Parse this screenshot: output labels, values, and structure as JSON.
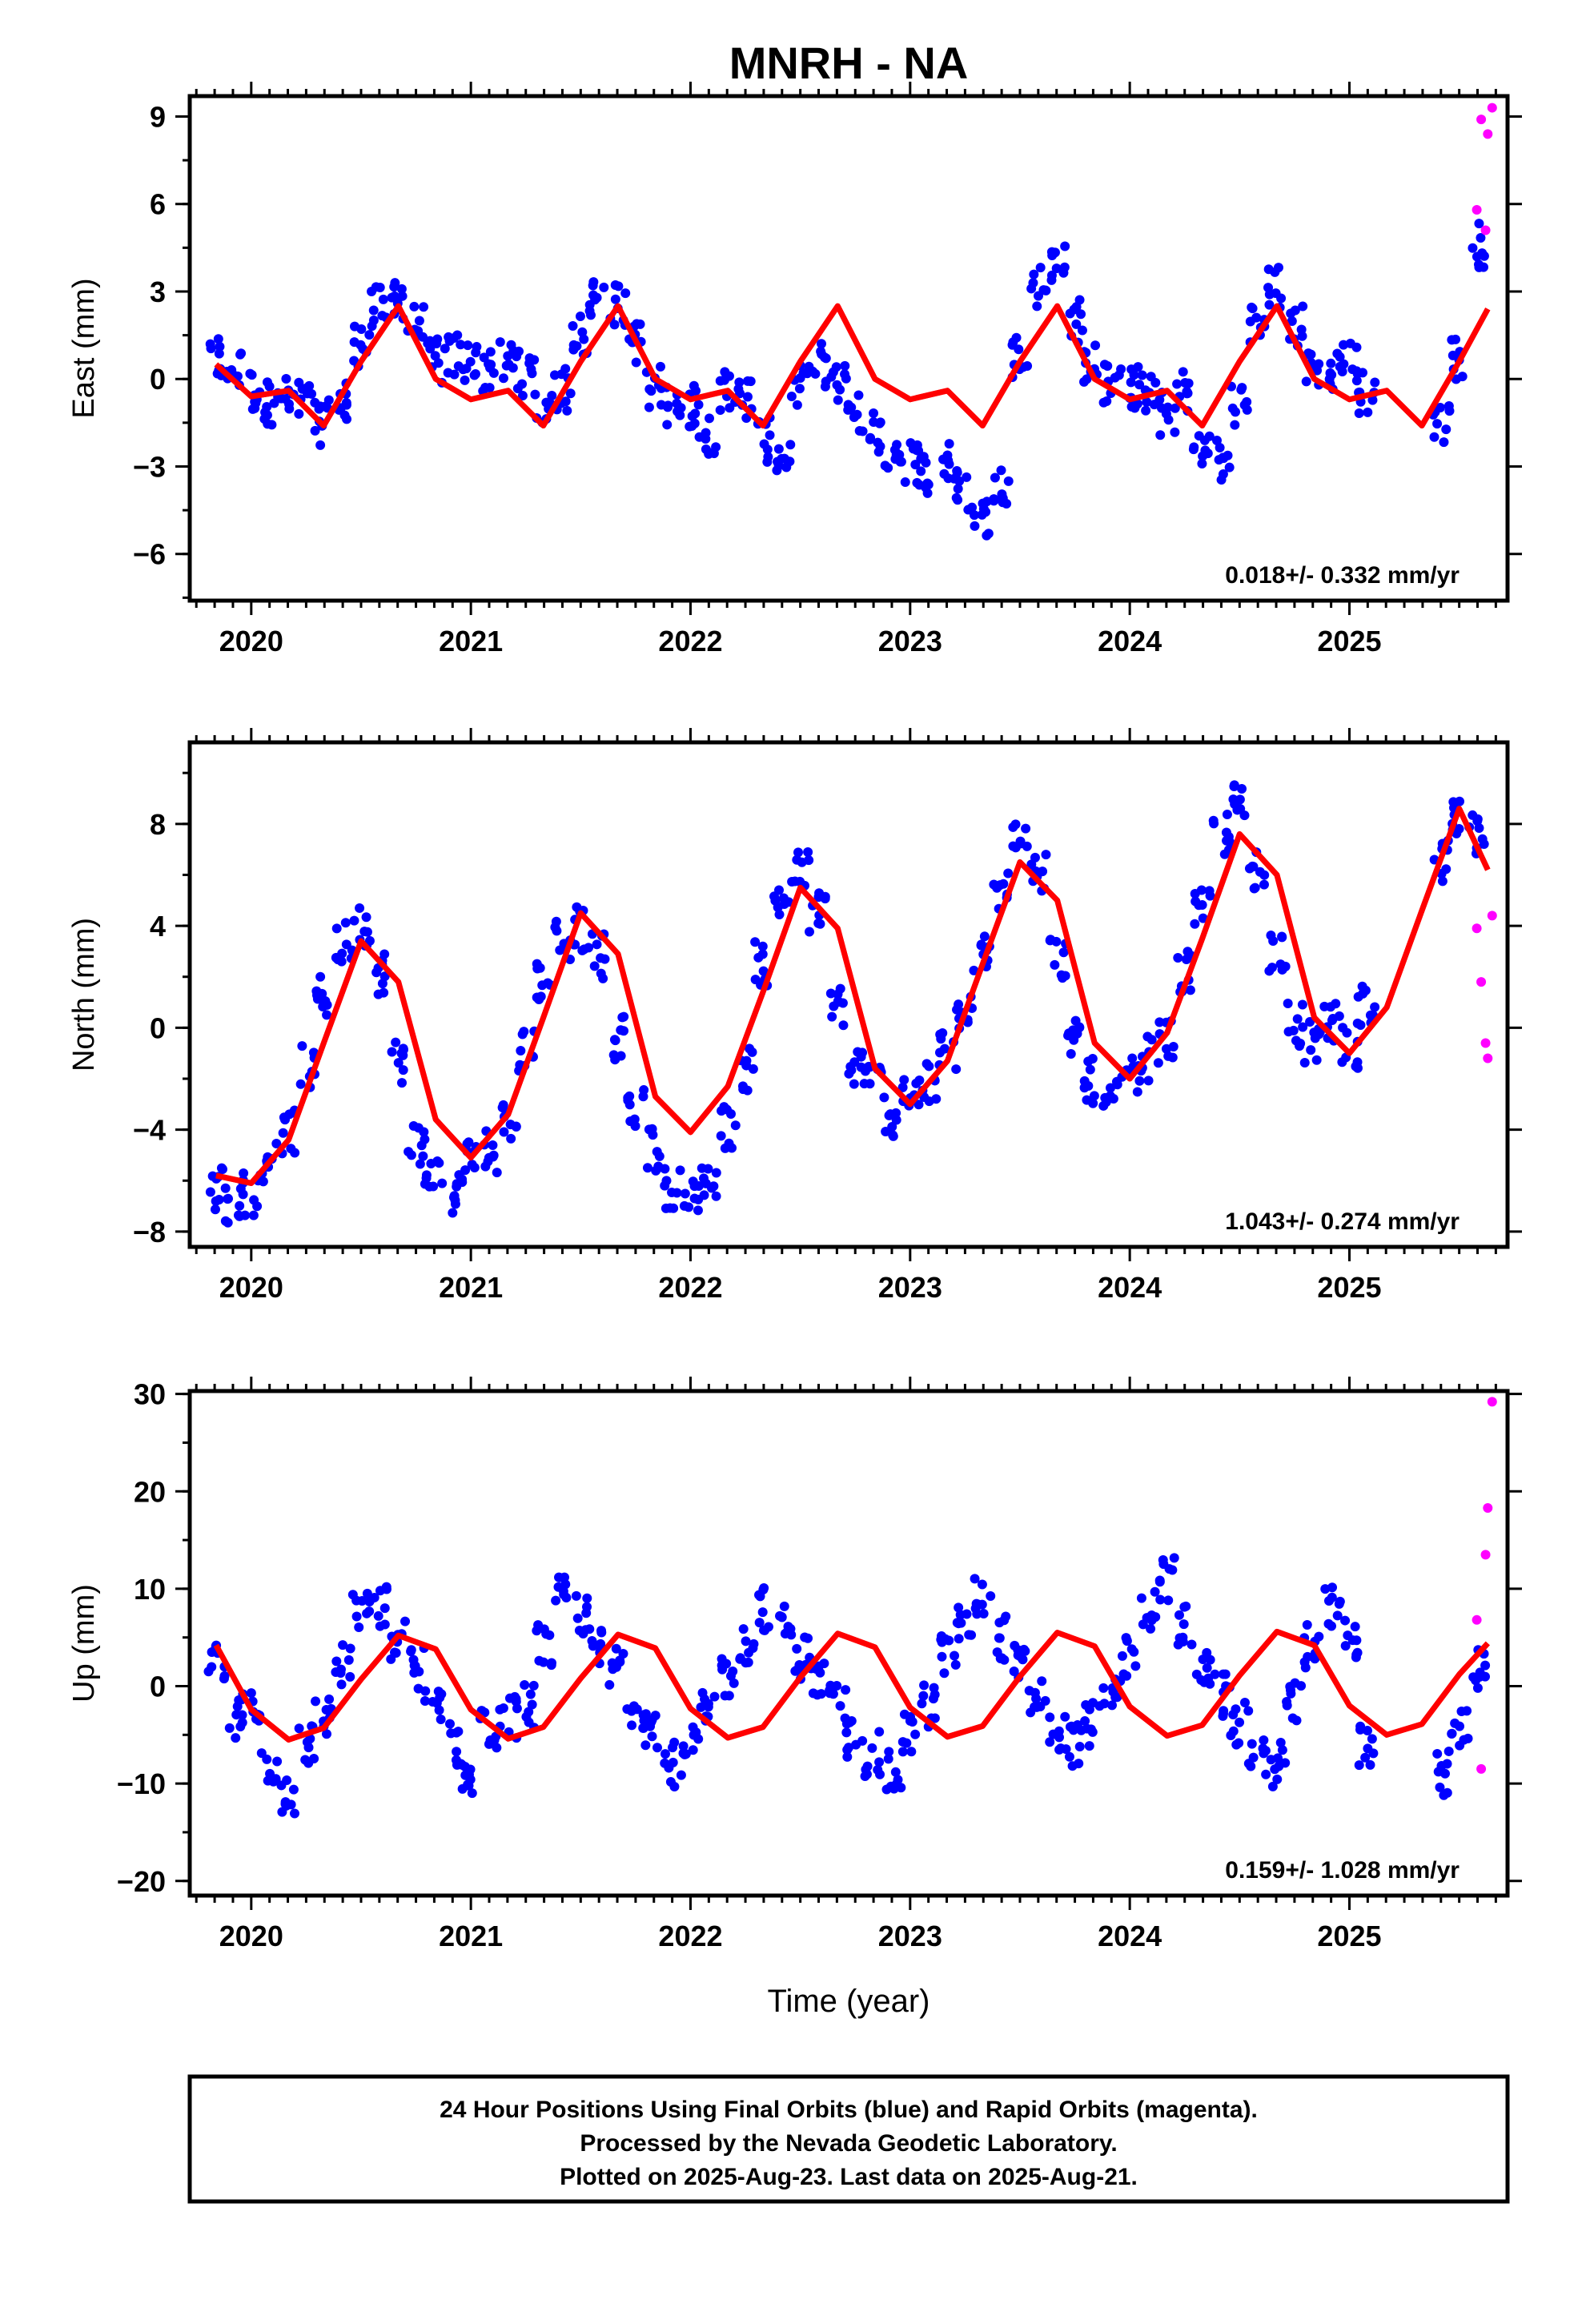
{
  "title": "MNRH - NA",
  "xlabel": "Time (year)",
  "colors": {
    "final": "#0000ff",
    "rapid": "#ff00ff",
    "fit": "#ff0000"
  },
  "footer": {
    "line1": "24 Hour Positions Using Final Orbits (blue) and Rapid Orbits (magenta).",
    "line2": "Processed by the Nevada Geodetic Laboratory.",
    "line3": "Plotted on 2025-Aug-23. Last data on 2025-Aug-21."
  },
  "chart_data": [
    {
      "type": "scatter",
      "panel": "east",
      "ylabel": "East (mm)",
      "xlim": [
        2019.72,
        2025.72
      ],
      "ylim": [
        -7.6,
        9.7
      ],
      "xticks": [
        2020,
        2021,
        2022,
        2023,
        2024,
        2025
      ],
      "yticks": [
        -6,
        -3,
        0,
        3,
        6,
        9
      ],
      "yticklabels": [
        "−6",
        "−3",
        "0",
        "3",
        "6",
        "9"
      ],
      "rate_label": "0.018+/- 0.332 mm/yr",
      "series": [
        {
          "name": "Final Orbits (blue)",
          "color": "#0000ff",
          "x": [
            2019.84,
            2019.92,
            2020.0,
            2020.08,
            2020.16,
            2020.25,
            2020.33,
            2020.42,
            2020.5,
            2020.58,
            2020.67,
            2020.75,
            2020.83,
            2020.92,
            2021.0,
            2021.08,
            2021.17,
            2021.25,
            2021.33,
            2021.42,
            2021.5,
            2021.58,
            2021.67,
            2021.75,
            2021.83,
            2021.92,
            2022.0,
            2022.08,
            2022.17,
            2022.25,
            2022.33,
            2022.42,
            2022.5,
            2022.58,
            2022.67,
            2022.75,
            2022.83,
            2022.92,
            2023.0,
            2023.08,
            2023.17,
            2023.25,
            2023.33,
            2023.42,
            2023.5,
            2023.58,
            2023.67,
            2023.75,
            2023.83,
            2023.92,
            2024.0,
            2024.08,
            2024.17,
            2024.25,
            2024.33,
            2024.42,
            2024.5,
            2024.58,
            2024.67,
            2024.75,
            2024.83,
            2024.92,
            2025.0,
            2025.08,
            2025.42,
            2025.5,
            2025.58
          ],
          "y": [
            0.6,
            0.3,
            -0.4,
            -0.8,
            -0.7,
            -0.8,
            -1.5,
            -0.8,
            1.2,
            2.4,
            2.8,
            1.8,
            0.6,
            0.8,
            0.6,
            0.3,
            0.5,
            0.2,
            -0.8,
            -0.4,
            1.5,
            2.9,
            2.5,
            1.3,
            -0.3,
            -0.8,
            -0.9,
            -1.8,
            -0.5,
            -0.6,
            -2.1,
            -2.6,
            -0.3,
            0.5,
            -0.2,
            -1.1,
            -1.9,
            -2.4,
            -2.8,
            -3.2,
            -2.9,
            -3.8,
            -4.8,
            -3.5,
            0.8,
            3.2,
            4.1,
            2.0,
            0.5,
            -0.1,
            -0.3,
            -0.6,
            -1.2,
            -0.4,
            -2.5,
            -2.8,
            -0.8,
            1.9,
            3.1,
            1.8,
            0.5,
            0.3,
            0.6,
            -0.5,
            -1.4,
            0.7,
            4.6
          ]
        },
        {
          "name": "Rapid Orbits (magenta)",
          "color": "#ff00ff",
          "x": [
            2025.58,
            2025.6,
            2025.62,
            2025.63,
            2025.65
          ],
          "y": [
            5.8,
            8.9,
            5.1,
            8.4,
            9.3
          ]
        },
        {
          "name": "fit",
          "type": "line",
          "color": "#ff0000",
          "x": [
            2019.84,
            2020.0,
            2020.17,
            2020.33,
            2020.5,
            2020.67,
            2020.84,
            2021.0,
            2021.17,
            2021.33,
            2021.5,
            2021.67,
            2021.84,
            2022.0,
            2022.17,
            2022.33,
            2022.5,
            2022.67,
            2022.84,
            2023.0,
            2023.17,
            2023.33,
            2023.5,
            2023.67,
            2023.84,
            2024.0,
            2024.17,
            2024.33,
            2024.5,
            2024.67,
            2024.84,
            2025.0,
            2025.17,
            2025.33,
            2025.5,
            2025.63
          ],
          "y": [
            0.5,
            -0.6,
            -0.4,
            -1.6,
            0.6,
            2.5,
            0.0,
            -0.7,
            -0.4,
            -1.6,
            0.6,
            2.5,
            0.0,
            -0.7,
            -0.4,
            -1.6,
            0.6,
            2.5,
            0.0,
            -0.7,
            -0.4,
            -1.6,
            0.6,
            2.5,
            0.0,
            -0.7,
            -0.4,
            -1.6,
            0.6,
            2.5,
            0.0,
            -0.7,
            -0.4,
            -1.6,
            0.6,
            2.4
          ]
        }
      ]
    },
    {
      "type": "scatter",
      "panel": "north",
      "ylabel": "North (mm)",
      "xlim": [
        2019.72,
        2025.72
      ],
      "ylim": [
        -8.6,
        11.2
      ],
      "xticks": [
        2020,
        2021,
        2022,
        2023,
        2024,
        2025
      ],
      "yticks": [
        -8,
        -4,
        0,
        4,
        8
      ],
      "yticklabels": [
        "−8",
        "−4",
        "0",
        "4",
        "8"
      ],
      "rate_label": "1.043+/- 0.274 mm/yr",
      "series": [
        {
          "name": "Final Orbits (blue)",
          "color": "#0000ff",
          "x": [
            2019.84,
            2019.92,
            2020.0,
            2020.08,
            2020.17,
            2020.25,
            2020.33,
            2020.42,
            2020.5,
            2020.58,
            2020.67,
            2020.75,
            2020.83,
            2020.92,
            2021.0,
            2021.08,
            2021.17,
            2021.25,
            2021.33,
            2021.42,
            2021.5,
            2021.58,
            2021.67,
            2021.75,
            2021.83,
            2021.92,
            2022.0,
            2022.08,
            2022.17,
            2022.25,
            2022.33,
            2022.42,
            2022.5,
            2022.58,
            2022.67,
            2022.75,
            2022.83,
            2022.92,
            2023.0,
            2023.08,
            2023.17,
            2023.25,
            2023.33,
            2023.42,
            2023.5,
            2023.58,
            2023.67,
            2023.75,
            2023.83,
            2023.92,
            2024.0,
            2024.08,
            2024.17,
            2024.25,
            2024.33,
            2024.42,
            2024.5,
            2024.58,
            2024.67,
            2024.75,
            2024.83,
            2024.92,
            2025.0,
            2025.08,
            2025.42,
            2025.5,
            2025.58
          ],
          "y": [
            -6.3,
            -6.8,
            -6.5,
            -5.2,
            -4.1,
            -1.6,
            1.2,
            3.3,
            4.0,
            2.2,
            -1.3,
            -4.5,
            -5.8,
            -6.5,
            -5.2,
            -4.8,
            -3.6,
            -0.8,
            1.9,
            3.5,
            3.9,
            2.8,
            -0.4,
            -3.2,
            -4.8,
            -6.2,
            -6.8,
            -5.9,
            -3.9,
            -1.6,
            2.5,
            5.0,
            6.1,
            4.5,
            0.9,
            -1.5,
            -2.2,
            -3.4,
            -2.6,
            -2.3,
            -0.9,
            0.4,
            2.9,
            5.4,
            7.8,
            6.2,
            2.8,
            -0.6,
            -2.1,
            -3.0,
            -2.0,
            -1.2,
            -0.6,
            2.1,
            4.6,
            7.6,
            8.7,
            6.3,
            3.1,
            0.1,
            -0.6,
            0.3,
            -0.7,
            0.8,
            6.5,
            8.0,
            7.5
          ]
        },
        {
          "name": "Rapid Orbits (magenta)",
          "color": "#ff00ff",
          "x": [
            2025.58,
            2025.6,
            2025.62,
            2025.63,
            2025.65
          ],
          "y": [
            3.9,
            1.8,
            -0.6,
            -1.2,
            4.4
          ]
        },
        {
          "name": "fit",
          "type": "line",
          "color": "#ff0000",
          "x": [
            2019.84,
            2020.0,
            2020.17,
            2020.33,
            2020.5,
            2020.67,
            2020.84,
            2021.0,
            2021.17,
            2021.33,
            2021.5,
            2021.67,
            2021.84,
            2022.0,
            2022.17,
            2022.33,
            2022.5,
            2022.67,
            2022.84,
            2023.0,
            2023.17,
            2023.33,
            2023.5,
            2023.67,
            2023.84,
            2024.0,
            2024.17,
            2024.33,
            2024.5,
            2024.67,
            2024.84,
            2025.0,
            2025.17,
            2025.33,
            2025.5,
            2025.63
          ],
          "y": [
            -5.8,
            -6.1,
            -4.4,
            -0.6,
            3.4,
            1.8,
            -3.6,
            -5.1,
            -3.4,
            0.4,
            4.5,
            2.9,
            -2.7,
            -4.1,
            -2.3,
            1.4,
            5.5,
            3.9,
            -1.6,
            -3.0,
            -1.3,
            2.5,
            6.5,
            5.0,
            -0.6,
            -2.0,
            -0.2,
            3.5,
            7.6,
            6.0,
            0.4,
            -1.0,
            0.8,
            4.6,
            8.6,
            6.2
          ]
        }
      ]
    },
    {
      "type": "scatter",
      "panel": "up",
      "ylabel": "Up (mm)",
      "xlim": [
        2019.72,
        2025.72
      ],
      "ylim": [
        -21.5,
        30.3
      ],
      "xticks": [
        2020,
        2021,
        2022,
        2023,
        2024,
        2025
      ],
      "yticks": [
        -20,
        -10,
        0,
        10,
        20,
        30
      ],
      "yticklabels": [
        "−20",
        "−10",
        "0",
        "10",
        "20",
        "30"
      ],
      "rate_label": "0.159+/- 1.028 mm/yr",
      "series": [
        {
          "name": "Final Orbits (blue)",
          "color": "#0000ff",
          "x": [
            2019.84,
            2019.92,
            2020.0,
            2020.08,
            2020.17,
            2020.25,
            2020.33,
            2020.42,
            2020.5,
            2020.58,
            2020.67,
            2020.75,
            2020.83,
            2020.92,
            2021.0,
            2021.08,
            2021.17,
            2021.25,
            2021.33,
            2021.42,
            2021.5,
            2021.58,
            2021.67,
            2021.75,
            2021.83,
            2021.92,
            2022.0,
            2022.08,
            2022.17,
            2022.25,
            2022.33,
            2022.42,
            2022.5,
            2022.58,
            2022.67,
            2022.75,
            2022.83,
            2022.92,
            2023.0,
            2023.08,
            2023.17,
            2023.25,
            2023.33,
            2023.42,
            2023.5,
            2023.58,
            2023.67,
            2023.75,
            2023.83,
            2023.92,
            2024.0,
            2024.08,
            2024.17,
            2024.25,
            2024.33,
            2024.42,
            2024.5,
            2024.58,
            2024.67,
            2024.75,
            2024.83,
            2024.92,
            2025.0,
            2025.08,
            2025.42,
            2025.5,
            2025.58
          ],
          "y": [
            2.0,
            -3.0,
            -2.5,
            -8.0,
            -11.0,
            -6.0,
            -3.0,
            2.0,
            7.5,
            8.0,
            4.5,
            2.0,
            -1.5,
            -6.0,
            -9.5,
            -4.5,
            -3.0,
            -2.0,
            4.0,
            9.0,
            7.5,
            3.5,
            2.0,
            -2.0,
            -4.0,
            -8.0,
            -6.5,
            -3.0,
            1.0,
            4.5,
            8.0,
            6.0,
            3.0,
            1.0,
            -2.0,
            -5.5,
            -7.0,
            -9.0,
            -5.0,
            -2.0,
            3.0,
            6.0,
            9.0,
            5.0,
            2.0,
            -1.0,
            -5.0,
            -6.0,
            -4.0,
            -1.0,
            3.0,
            8.0,
            11.0,
            6.0,
            2.0,
            -1.0,
            -4.0,
            -7.0,
            -8.0,
            -2.0,
            4.0,
            8.0,
            5.0,
            -6.0,
            -9.0,
            -4.0,
            2.0
          ]
        },
        {
          "name": "Rapid Orbits (magenta)",
          "color": "#ff00ff",
          "x": [
            2025.58,
            2025.6,
            2025.62,
            2025.63,
            2025.65
          ],
          "y": [
            6.8,
            -8.5,
            13.5,
            18.3,
            29.2
          ]
        },
        {
          "name": "fit",
          "type": "line",
          "color": "#ff0000",
          "x": [
            2019.84,
            2020.0,
            2020.17,
            2020.33,
            2020.5,
            2020.67,
            2020.84,
            2021.0,
            2021.17,
            2021.33,
            2021.5,
            2021.67,
            2021.84,
            2022.0,
            2022.17,
            2022.33,
            2022.5,
            2022.67,
            2022.84,
            2023.0,
            2023.17,
            2023.33,
            2023.5,
            2023.67,
            2023.84,
            2024.0,
            2024.17,
            2024.33,
            2024.5,
            2024.67,
            2024.84,
            2025.0,
            2025.17,
            2025.33,
            2025.5,
            2025.63
          ],
          "y": [
            4.2,
            -2.4,
            -5.5,
            -4.3,
            0.7,
            5.2,
            3.8,
            -2.4,
            -5.4,
            -4.2,
            0.8,
            5.3,
            3.9,
            -2.3,
            -5.3,
            -4.2,
            0.9,
            5.4,
            4.0,
            -2.2,
            -5.2,
            -4.1,
            1.0,
            5.5,
            4.1,
            -2.1,
            -5.1,
            -4.0,
            1.1,
            5.6,
            4.2,
            -2.0,
            -5.0,
            -3.9,
            1.2,
            4.4
          ]
        }
      ]
    }
  ]
}
